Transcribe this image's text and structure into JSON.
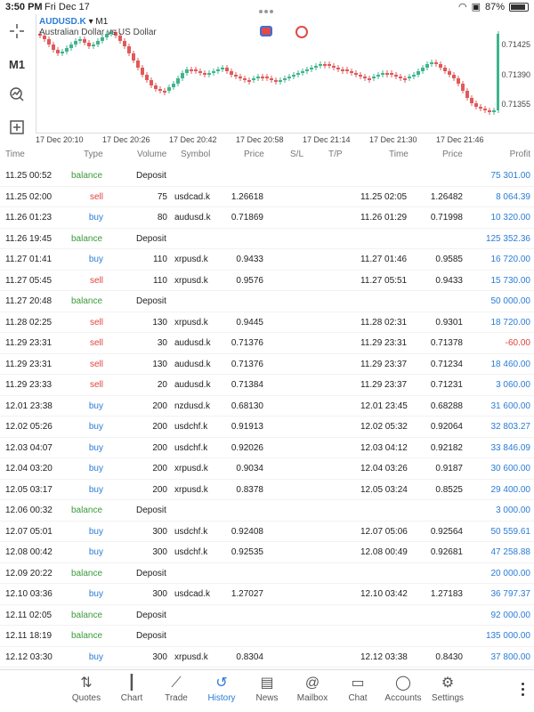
{
  "status": {
    "time": "3:50 PM",
    "date": "Fri Dec 17",
    "battery": "87%"
  },
  "chart": {
    "symbol": "AUDUSD.K",
    "timeframe_suffix": "▾ M1",
    "description": "Australian Dollar vs US Dollar",
    "toolbar_timeframe": "M1",
    "y_ticks": [
      "0.71425",
      "0.71390",
      "0.71355"
    ],
    "x_ticks": [
      "17 Dec 20:10",
      "17 Dec 20:26",
      "17 Dec 20:42",
      "17 Dec 20:58",
      "17 Dec 21:14",
      "17 Dec 21:30",
      "17 Dec 21:46"
    ],
    "up_color": "#3fb58e",
    "down_color": "#e05a5a"
  },
  "columns": {
    "time": "Time",
    "type": "Type",
    "volume": "Volume",
    "symbol": "Symbol",
    "price": "Price",
    "sl": "S/L",
    "tp": "T/P",
    "close_time": "Time",
    "close_price": "Price",
    "profit": "Profit"
  },
  "deals": [
    {
      "time": "11.25 00:52",
      "type": "balance",
      "comment": "Deposit",
      "profit": "75 301.00"
    },
    {
      "time": "11.25 02:00",
      "type": "sell",
      "volume": "75",
      "symbol": "usdcad.k",
      "price": "1.26618",
      "close_time": "11.25 02:05",
      "close_price": "1.26482",
      "profit": "8 064.39"
    },
    {
      "time": "11.26 01:23",
      "type": "buy",
      "volume": "80",
      "symbol": "audusd.k",
      "price": "0.71869",
      "close_time": "11.26 01:29",
      "close_price": "0.71998",
      "profit": "10 320.00"
    },
    {
      "time": "11.26 19:45",
      "type": "balance",
      "comment": "Deposit",
      "profit": "125 352.36"
    },
    {
      "time": "11.27 01:41",
      "type": "buy",
      "volume": "110",
      "symbol": "xrpusd.k",
      "price": "0.9433",
      "close_time": "11.27 01:46",
      "close_price": "0.9585",
      "profit": "16 720.00"
    },
    {
      "time": "11.27 05:45",
      "type": "sell",
      "volume": "110",
      "symbol": "xrpusd.k",
      "price": "0.9576",
      "close_time": "11.27 05:51",
      "close_price": "0.9433",
      "profit": "15 730.00"
    },
    {
      "time": "11.27 20:48",
      "type": "balance",
      "comment": "Deposit",
      "profit": "50 000.00"
    },
    {
      "time": "11.28 02:25",
      "type": "sell",
      "volume": "130",
      "symbol": "xrpusd.k",
      "price": "0.9445",
      "close_time": "11.28 02:31",
      "close_price": "0.9301",
      "profit": "18 720.00"
    },
    {
      "time": "11.29 23:31",
      "type": "sell",
      "volume": "30",
      "symbol": "audusd.k",
      "price": "0.71376",
      "close_time": "11.29 23:31",
      "close_price": "0.71378",
      "profit": "-60.00",
      "negative": true
    },
    {
      "time": "11.29 23:31",
      "type": "sell",
      "volume": "130",
      "symbol": "audusd.k",
      "price": "0.71376",
      "close_time": "11.29 23:37",
      "close_price": "0.71234",
      "profit": "18 460.00"
    },
    {
      "time": "11.29 23:33",
      "type": "sell",
      "volume": "20",
      "symbol": "audusd.k",
      "price": "0.71384",
      "close_time": "11.29 23:37",
      "close_price": "0.71231",
      "profit": "3 060.00"
    },
    {
      "time": "12.01 23:38",
      "type": "buy",
      "volume": "200",
      "symbol": "nzdusd.k",
      "price": "0.68130",
      "close_time": "12.01 23:45",
      "close_price": "0.68288",
      "profit": "31 600.00"
    },
    {
      "time": "12.02 05:26",
      "type": "buy",
      "volume": "200",
      "symbol": "usdchf.k",
      "price": "0.91913",
      "close_time": "12.02 05:32",
      "close_price": "0.92064",
      "profit": "32 803.27"
    },
    {
      "time": "12.03 04:07",
      "type": "buy",
      "volume": "200",
      "symbol": "usdchf.k",
      "price": "0.92026",
      "close_time": "12.03 04:12",
      "close_price": "0.92182",
      "profit": "33 846.09"
    },
    {
      "time": "12.04 03:20",
      "type": "buy",
      "volume": "200",
      "symbol": "xrpusd.k",
      "price": "0.9034",
      "close_time": "12.04 03:26",
      "close_price": "0.9187",
      "profit": "30 600.00"
    },
    {
      "time": "12.05 03:17",
      "type": "buy",
      "volume": "200",
      "symbol": "xrpusd.k",
      "price": "0.8378",
      "close_time": "12.05 03:24",
      "close_price": "0.8525",
      "profit": "29 400.00"
    },
    {
      "time": "12.06 00:32",
      "type": "balance",
      "comment": "Deposit",
      "profit": "3 000.00"
    },
    {
      "time": "12.07 05:01",
      "type": "buy",
      "volume": "300",
      "symbol": "usdchf.k",
      "price": "0.92408",
      "close_time": "12.07 05:06",
      "close_price": "0.92564",
      "profit": "50 559.61"
    },
    {
      "time": "12.08 00:42",
      "type": "buy",
      "volume": "300",
      "symbol": "usdchf.k",
      "price": "0.92535",
      "close_time": "12.08 00:49",
      "close_price": "0.92681",
      "profit": "47 258.88"
    },
    {
      "time": "12.09 20:22",
      "type": "balance",
      "comment": "Deposit",
      "profit": "20 000.00"
    },
    {
      "time": "12.10 03:36",
      "type": "buy",
      "volume": "300",
      "symbol": "usdcad.k",
      "price": "1.27027",
      "close_time": "12.10 03:42",
      "close_price": "1.27183",
      "profit": "36 797.37"
    },
    {
      "time": "12.11 02:05",
      "type": "balance",
      "comment": "Deposit",
      "profit": "92 000.00"
    },
    {
      "time": "12.11 18:19",
      "type": "balance",
      "comment": "Deposit",
      "profit": "135 000.00"
    },
    {
      "time": "12.12 03:30",
      "type": "buy",
      "volume": "300",
      "symbol": "xrpusd.k",
      "price": "0.8304",
      "close_time": "12.12 03:38",
      "close_price": "0.8430",
      "profit": "37 800.00"
    }
  ],
  "tabs": [
    {
      "label": "Quotes",
      "icon": "quotes-icon",
      "glyph": "⇅"
    },
    {
      "label": "Chart",
      "icon": "candles-icon",
      "glyph": "┃"
    },
    {
      "label": "Trade",
      "icon": "trend-icon",
      "glyph": "⟋"
    },
    {
      "label": "History",
      "icon": "history-icon",
      "glyph": "↺",
      "active": true
    },
    {
      "label": "News",
      "icon": "news-icon",
      "glyph": "▤"
    },
    {
      "label": "Mailbox",
      "icon": "at-icon",
      "glyph": "@"
    },
    {
      "label": "Chat",
      "icon": "chat-icon",
      "glyph": "▭"
    },
    {
      "label": "Accounts",
      "icon": "user-icon",
      "glyph": "◯"
    },
    {
      "label": "Settings",
      "icon": "gear-icon",
      "glyph": "⚙"
    }
  ]
}
